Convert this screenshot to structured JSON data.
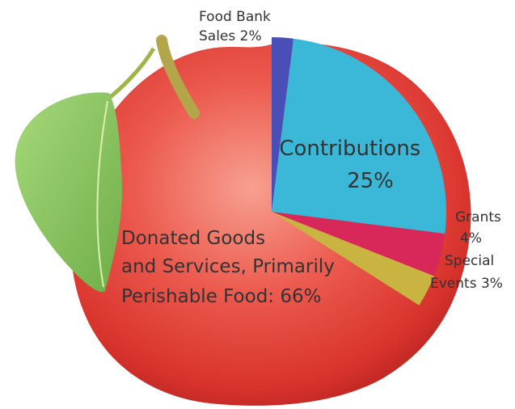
{
  "chart_data": {
    "type": "pie",
    "slices": [
      {
        "label": "Donated Goods and Services, Primarily Perishable Food",
        "value": 66,
        "display": [
          "Donated Goods",
          "and Services, Primarily",
          "Perishable Food: 66%"
        ],
        "color": "#e84a4a"
      },
      {
        "label": "Food Bank Sales",
        "value": 2,
        "display": [
          "Food Bank",
          "Sales 2%"
        ],
        "color": "#4a4fb8"
      },
      {
        "label": "Contributions",
        "value": 25,
        "display": [
          "Contributions",
          "25%"
        ],
        "color": "#3bb8d8"
      },
      {
        "label": "Grants",
        "value": 4,
        "display": [
          "Grants",
          "4%"
        ],
        "color": "#d8285a"
      },
      {
        "label": "Special Events",
        "value": 3,
        "display": [
          "Special",
          "Events 3%"
        ],
        "color": "#c9b341"
      }
    ]
  },
  "colors": {
    "apple_light": "#f27a6c",
    "apple_mid": "#e03a34",
    "apple_dark": "#b8231f",
    "leaf": "#8fcb63",
    "stem": "#b3a64a"
  },
  "icons": {
    "background": "apple-illustration"
  }
}
